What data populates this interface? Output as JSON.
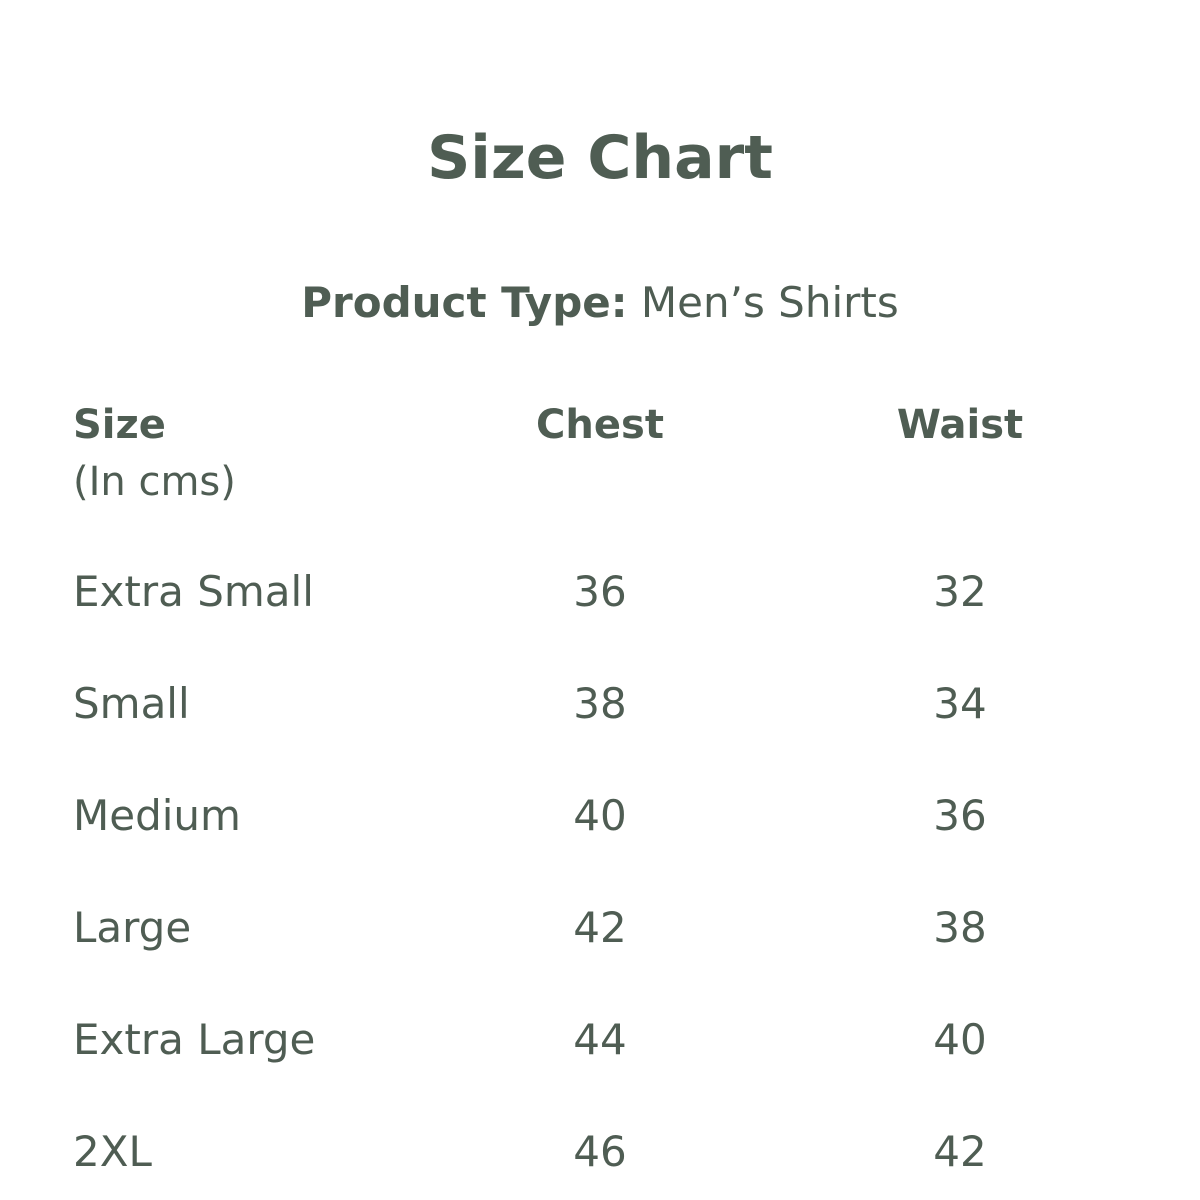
{
  "title": "Size Chart",
  "product_type": {
    "label": "Product Type:",
    "value": "Men’s Shirts"
  },
  "table": {
    "headers": [
      {
        "label": "Size",
        "sublabel": "(In cms)"
      },
      {
        "label": "Chest"
      },
      {
        "label": "Waist"
      }
    ],
    "rows": [
      {
        "size": "Extra Small",
        "chest": "36",
        "waist": "32"
      },
      {
        "size": "Small",
        "chest": "38",
        "waist": "34"
      },
      {
        "size": "Medium",
        "chest": "40",
        "waist": "36"
      },
      {
        "size": "Large",
        "chest": "42",
        "waist": "38"
      },
      {
        "size": "Extra Large",
        "chest": "44",
        "waist": "40"
      },
      {
        "size": "2XL",
        "chest": "46",
        "waist": "42"
      }
    ]
  },
  "colors": {
    "text": "#4f5d53",
    "background": "#ffffff"
  }
}
